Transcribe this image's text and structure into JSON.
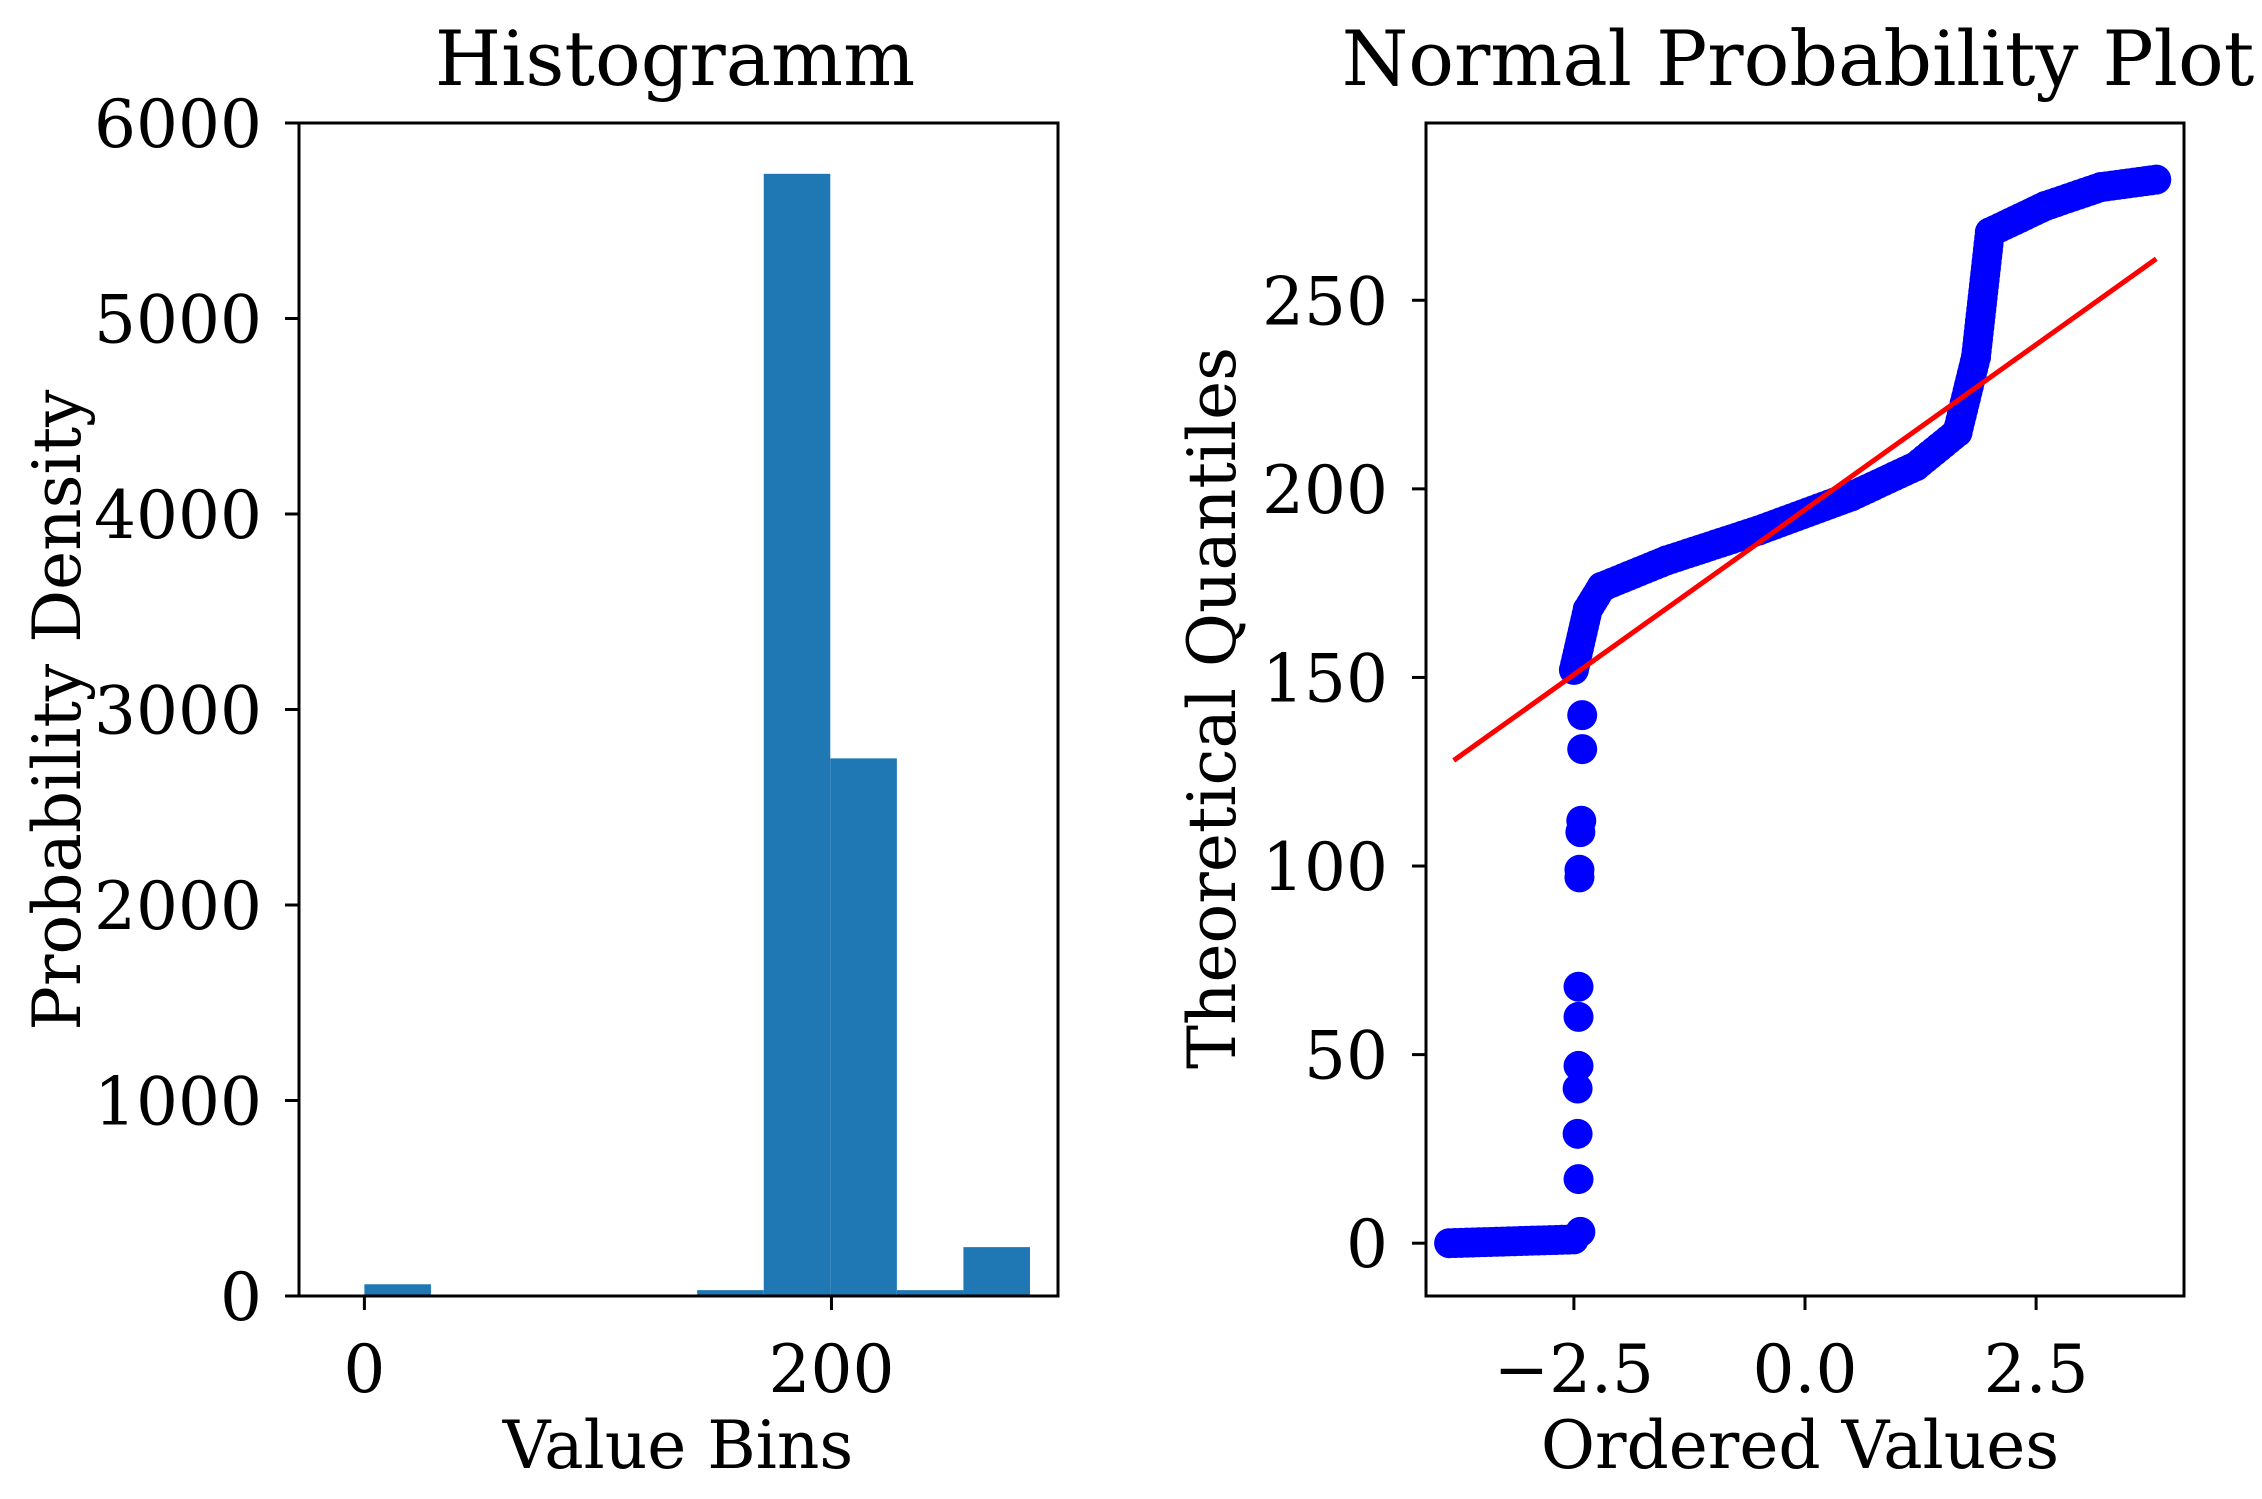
{
  "colors": {
    "bar": "#1f77b4",
    "points": "#0000ff",
    "fit_line": "#ff0000",
    "axes": "#000000"
  },
  "chart_data": [
    {
      "type": "bar",
      "title": "Histogramm",
      "xlabel": "Value Bins",
      "ylabel": "Probability Density",
      "xlim": [
        -28,
        297
      ],
      "ylim": [
        0,
        6000
      ],
      "xticks": [
        0,
        200
      ],
      "yticks": [
        0,
        1000,
        2000,
        3000,
        4000,
        5000,
        6000
      ],
      "bins": [
        {
          "start": 0,
          "end": 28.5,
          "value": 60
        },
        {
          "start": 28.5,
          "end": 57,
          "value": 0
        },
        {
          "start": 57,
          "end": 85.5,
          "value": 0
        },
        {
          "start": 85.5,
          "end": 114,
          "value": 0
        },
        {
          "start": 114,
          "end": 142.5,
          "value": 0
        },
        {
          "start": 142.5,
          "end": 171,
          "value": 30
        },
        {
          "start": 171,
          "end": 199.5,
          "value": 5740
        },
        {
          "start": 199.5,
          "end": 228,
          "value": 2750
        },
        {
          "start": 228,
          "end": 256.5,
          "value": 30
        },
        {
          "start": 256.5,
          "end": 285,
          "value": 250
        }
      ]
    },
    {
      "type": "scatter",
      "title": "Normal Probability Plot",
      "xlabel": "Ordered Values",
      "ylabel": "Theoretical Quantiles",
      "xlim": [
        -4.1,
        4.1
      ],
      "ylim": [
        -14,
        297
      ],
      "xticks": [
        -2.5,
        0.0,
        2.5
      ],
      "xtick_labels": [
        "−2.5",
        "0.0",
        "2.5"
      ],
      "yticks": [
        0,
        50,
        100,
        150,
        200,
        250
      ],
      "fit_line": {
        "x": [
          -3.8,
          3.8
        ],
        "y": [
          128,
          261
        ]
      },
      "curve_segments": [
        {
          "x": [
            -3.85,
            -2.5
          ],
          "y": [
            0,
            1
          ]
        },
        {
          "x": [
            -2.5,
            -2.35
          ],
          "y": [
            152,
            168
          ]
        },
        {
          "x": [
            -2.35,
            -2.2
          ],
          "y": [
            168,
            174
          ]
        },
        {
          "x": [
            -2.2,
            -1.5
          ],
          "y": [
            174,
            181
          ]
        },
        {
          "x": [
            -1.5,
            -0.5
          ],
          "y": [
            181,
            189
          ]
        },
        {
          "x": [
            -0.5,
            0.5
          ],
          "y": [
            189,
            198
          ]
        },
        {
          "x": [
            0.5,
            1.2
          ],
          "y": [
            198,
            206
          ]
        },
        {
          "x": [
            1.2,
            1.65
          ],
          "y": [
            206,
            215
          ]
        },
        {
          "x": [
            1.65,
            1.85
          ],
          "y": [
            215,
            235
          ]
        },
        {
          "x": [
            1.85,
            2.0
          ],
          "y": [
            235,
            268
          ]
        },
        {
          "x": [
            2.0,
            2.6
          ],
          "y": [
            268,
            275
          ]
        },
        {
          "x": [
            2.6,
            3.2
          ],
          "y": [
            275,
            280
          ]
        },
        {
          "x": [
            3.2,
            3.8
          ],
          "y": [
            280,
            282
          ]
        }
      ],
      "outlier_points": [
        {
          "x": -2.43,
          "y": 3
        },
        {
          "x": -2.45,
          "y": 17
        },
        {
          "x": -2.46,
          "y": 29
        },
        {
          "x": -2.46,
          "y": 41
        },
        {
          "x": -2.45,
          "y": 47
        },
        {
          "x": -2.45,
          "y": 60
        },
        {
          "x": -2.45,
          "y": 68
        },
        {
          "x": -2.44,
          "y": 97
        },
        {
          "x": -2.44,
          "y": 99
        },
        {
          "x": -2.43,
          "y": 109
        },
        {
          "x": -2.42,
          "y": 112
        },
        {
          "x": -2.41,
          "y": 131
        },
        {
          "x": -2.41,
          "y": 140
        }
      ]
    }
  ]
}
